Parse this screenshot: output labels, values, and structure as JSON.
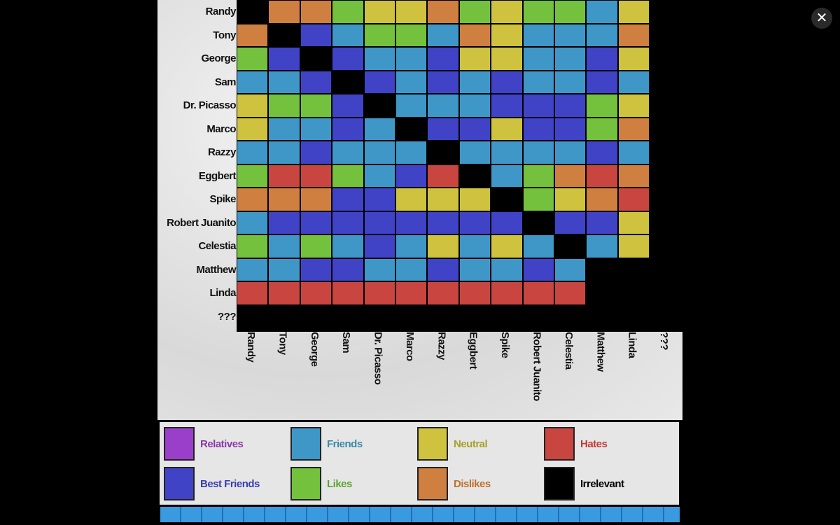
{
  "colors": {
    "O": "#cf7f40",
    "Y": "#cfc23f",
    "G": "#74c13e",
    "C": "#3f97c8",
    "B": "#4043c6",
    "R": "#c8463f",
    "P": "#9a3fc9",
    "K": "#000000"
  },
  "names": [
    "Randy",
    "Tony",
    "George",
    "Sam",
    "Dr. Picasso",
    "Marco",
    "Razzy",
    "Eggbert",
    "Spike",
    "Robert Juanito",
    "Celestia",
    "Matthew",
    "Linda",
    "???"
  ],
  "matrix": [
    "KOOGYYOGYGGCYK",
    "OKBCGGCOYCCCOK",
    "GBKBCCBYYCCBYK",
    "CCBKBCBCBCCBCK",
    "YGGBKCCCBBBGYK",
    "YCCBCKBBYBBGOK",
    "CCBCCCKCCCCBCK",
    "GRRGCBRKCGOROK",
    "OOOBBYYYKGYORK",
    "CBBBBBBBBKBBYK",
    "GCGCBCYCYCKCYK",
    "CCBBCCBCCBCKKK",
    "RRRRRRRRRRRKKK",
    "KKKKKKKKKKKKKK"
  ],
  "legend": [
    {
      "label": "Relatives",
      "color": "#9a3fc9",
      "text_color": "#8a3aa8"
    },
    {
      "label": "Best Friends",
      "color": "#4043c6",
      "text_color": "#3a3db0"
    },
    {
      "label": "Friends",
      "color": "#3f97c8",
      "text_color": "#3a8aa8"
    },
    {
      "label": "Likes",
      "color": "#74c13e",
      "text_color": "#5aa52e"
    },
    {
      "label": "Neutral",
      "color": "#cfc23f",
      "text_color": "#a8a02a"
    },
    {
      "label": "Dislikes",
      "color": "#cf7f40",
      "text_color": "#c0702e"
    },
    {
      "label": "Hates",
      "color": "#c8463f",
      "text_color": "#c03a34"
    },
    {
      "label": "Irrelevant",
      "color": "#000000",
      "text_color": "#000000"
    }
  ],
  "close_icon": "close-icon",
  "close_glyph": "✕"
}
